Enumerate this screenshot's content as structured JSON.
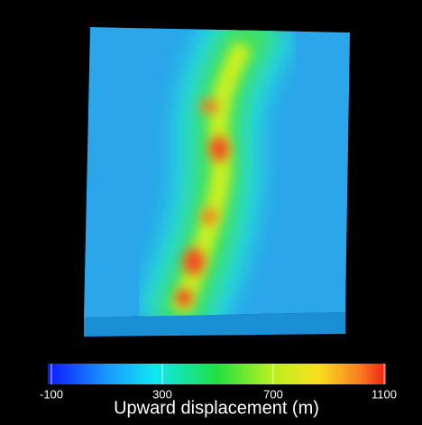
{
  "colorbar": {
    "label": "Upward displacement (m)",
    "lim": [
      -100,
      1100
    ],
    "ticks": [
      -100,
      300,
      700,
      1100
    ]
  }
}
